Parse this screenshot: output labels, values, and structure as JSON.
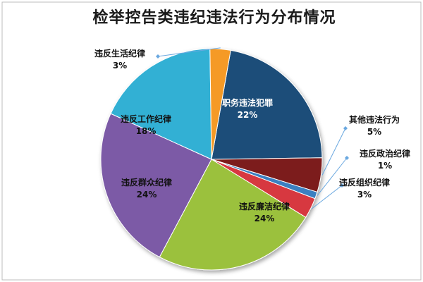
{
  "chart_data": {
    "type": "pie",
    "title": "检举控告类违纪违法行为分布情况",
    "slices": [
      {
        "name": "职务违法犯罪",
        "value": 22,
        "pct_label": "22%",
        "color": "#1f4e79"
      },
      {
        "name": "其他违法行为",
        "value": 5,
        "pct_label": "5%",
        "color": "#7b1c1c"
      },
      {
        "name": "违反政治纪律",
        "value": 1,
        "pct_label": "1%",
        "color": "#3a7fc1"
      },
      {
        "name": "违反组织纪律",
        "value": 3,
        "pct_label": "3%",
        "color": "#d7373f"
      },
      {
        "name": "违反廉洁纪律",
        "value": 24,
        "pct_label": "24%",
        "color": "#9bc13c"
      },
      {
        "name": "违反群众纪律",
        "value": 24,
        "pct_label": "24%",
        "color": "#7b5aa6"
      },
      {
        "name": "违反工作纪律",
        "value": 18,
        "pct_label": "18%",
        "color": "#33b0d4"
      },
      {
        "name": "违反生活纪律",
        "value": 3,
        "pct_label": "3%",
        "color": "#f59a26"
      }
    ],
    "legend": "none",
    "data_labels": "category-and-percent"
  }
}
